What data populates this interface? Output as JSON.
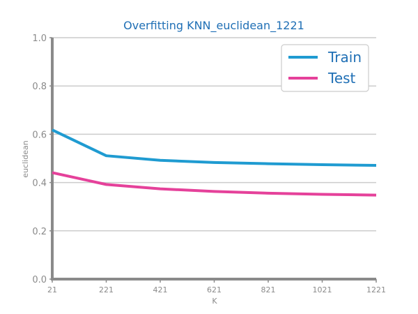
{
  "chart_data": {
    "type": "line",
    "title": "Overfitting KNN_euclidean_1221",
    "xlabel": "K",
    "ylabel": "euclidean",
    "x": [
      21,
      221,
      421,
      621,
      821,
      1021,
      1221
    ],
    "x_ticks": [
      "21",
      "221",
      "421",
      "621",
      "821",
      "1021",
      "1221"
    ],
    "y_ticks": [
      "0.0",
      "0.2",
      "0.4",
      "0.6",
      "0.8",
      "1.0"
    ],
    "xlim": [
      21,
      1221
    ],
    "ylim": [
      0,
      1
    ],
    "grid": "horizontal",
    "legend_position": "top-right",
    "series": [
      {
        "name": "Train",
        "color": "#1f9bd1",
        "values": [
          0.618,
          0.511,
          0.492,
          0.483,
          0.478,
          0.474,
          0.471
        ]
      },
      {
        "name": "Test",
        "color": "#e5419a",
        "values": [
          0.441,
          0.392,
          0.374,
          0.363,
          0.356,
          0.351,
          0.348
        ]
      }
    ],
    "colors": {
      "title": "#1f6fb5",
      "axis": "#8a8a8a",
      "grid": "#cccccc",
      "legend_text": "#1f6fb5"
    }
  }
}
